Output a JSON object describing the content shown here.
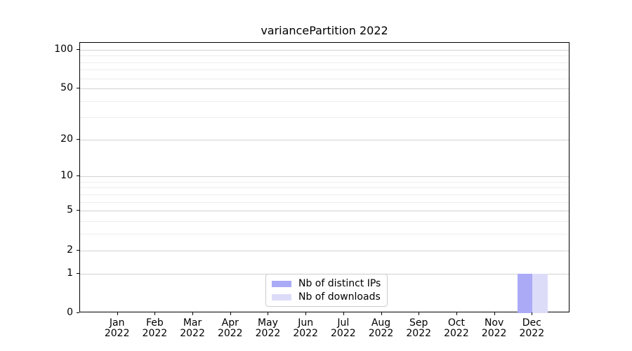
{
  "chart_data": {
    "type": "bar",
    "title": "variancePartition 2022",
    "categories": [
      "Jan",
      "Feb",
      "Mar",
      "Apr",
      "May",
      "Jun",
      "Jul",
      "Aug",
      "Sep",
      "Oct",
      "Nov",
      "Dec"
    ],
    "x_tick_year": "2022",
    "series": [
      {
        "name": "Nb of distinct IPs",
        "color": "#aaaaf7",
        "values": [
          0,
          0,
          0,
          0,
          0,
          0,
          0,
          0,
          0,
          0,
          0,
          1
        ]
      },
      {
        "name": "Nb of downloads",
        "color": "#dcdcf9",
        "values": [
          0,
          0,
          0,
          0,
          0,
          0,
          0,
          0,
          0,
          0,
          0,
          1
        ]
      }
    ],
    "yscale": "log1p",
    "ylim": [
      0,
      113
    ],
    "yticks": [
      0,
      1,
      2,
      5,
      10,
      20,
      50,
      100
    ],
    "yticks_minor": [
      3,
      4,
      6,
      7,
      8,
      9,
      30,
      40,
      60,
      70,
      80,
      90
    ],
    "grid": true,
    "legend_position": "lower center",
    "axis_color": "#000000",
    "grid_major_color": "#d2d2d2",
    "grid_minor_color": "#ededed",
    "background_color": "#ffffff"
  }
}
